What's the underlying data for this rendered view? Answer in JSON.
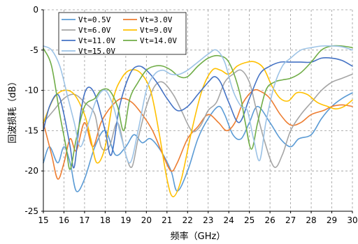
{
  "chart_data": {
    "type": "line",
    "title": "",
    "xlabel": "频率（GHz）",
    "ylabel": "回波损耗（dB）",
    "xlim": [
      15,
      30
    ],
    "ylim": [
      -25,
      0
    ],
    "x_ticks": [
      "15",
      "16",
      "17",
      "18",
      "19",
      "20",
      "21",
      "22",
      "23",
      "24",
      "25",
      "26",
      "27",
      "28",
      "29",
      "30"
    ],
    "y_ticks": [
      "0",
      "-5",
      "-10",
      "-15",
      "-20",
      "-25"
    ],
    "grid": true,
    "legend_position": "top-left",
    "series": [
      {
        "name": "Vt=0.5V",
        "color": "#5b9bd5",
        "points": [
          [
            15,
            -19
          ],
          [
            15.3,
            -17
          ],
          [
            15.7,
            -19
          ],
          [
            16,
            -17
          ],
          [
            16.3,
            -19
          ],
          [
            16.6,
            -22.5
          ],
          [
            17,
            -21
          ],
          [
            17.5,
            -17
          ],
          [
            18,
            -15
          ],
          [
            18.5,
            -18
          ],
          [
            19,
            -17
          ],
          [
            19.4,
            -15.5
          ],
          [
            19.8,
            -16.5
          ],
          [
            20.2,
            -16
          ],
          [
            20.7,
            -17.5
          ],
          [
            21.2,
            -20
          ],
          [
            21.5,
            -22.5
          ],
          [
            22,
            -20
          ],
          [
            22.5,
            -16
          ],
          [
            23,
            -13.5
          ],
          [
            23.5,
            -12
          ],
          [
            23.8,
            -13
          ],
          [
            24.2,
            -15.5
          ],
          [
            24.6,
            -16
          ],
          [
            25,
            -14
          ],
          [
            25.4,
            -12
          ],
          [
            26,
            -14
          ],
          [
            26.5,
            -16
          ],
          [
            27,
            -17
          ],
          [
            27.4,
            -16
          ],
          [
            28,
            -15.5
          ],
          [
            28.5,
            -13.5
          ],
          [
            29,
            -12
          ],
          [
            29.5,
            -11
          ],
          [
            30,
            -10.3
          ]
        ]
      },
      {
        "name": "Vt=3.0V",
        "color": "#ed7d31",
        "points": [
          [
            15,
            -14
          ],
          [
            15.4,
            -18
          ],
          [
            15.7,
            -21
          ],
          [
            16,
            -19
          ],
          [
            16.3,
            -16
          ],
          [
            16.6,
            -17.5
          ],
          [
            17,
            -14
          ],
          [
            17.4,
            -17
          ],
          [
            17.8,
            -14
          ],
          [
            18.3,
            -12
          ],
          [
            18.8,
            -11
          ],
          [
            19.3,
            -11.5
          ],
          [
            19.8,
            -13
          ],
          [
            20.3,
            -15
          ],
          [
            20.8,
            -18
          ],
          [
            21.2,
            -20
          ],
          [
            21.5,
            -19
          ],
          [
            22,
            -16
          ],
          [
            22.5,
            -14.5
          ],
          [
            23,
            -13
          ],
          [
            23.5,
            -14
          ],
          [
            23.9,
            -15
          ],
          [
            24.3,
            -14
          ],
          [
            24.7,
            -11.5
          ],
          [
            25.2,
            -10
          ],
          [
            25.6,
            -10.2
          ],
          [
            26,
            -11
          ],
          [
            26.5,
            -13
          ],
          [
            27,
            -14.3
          ],
          [
            27.5,
            -14
          ],
          [
            28,
            -13
          ],
          [
            28.6,
            -12.5
          ],
          [
            29,
            -12
          ],
          [
            29.5,
            -11.8
          ],
          [
            30,
            -12
          ]
        ]
      },
      {
        "name": "Vt=6.0V",
        "color": "#a5a5a5",
        "points": [
          [
            15,
            -14
          ],
          [
            15.5,
            -12.5
          ],
          [
            16,
            -11
          ],
          [
            16.5,
            -10.5
          ],
          [
            17,
            -11.5
          ],
          [
            17.5,
            -13
          ],
          [
            17.8,
            -17
          ],
          [
            18.2,
            -17
          ],
          [
            18.6,
            -14
          ],
          [
            19,
            -18
          ],
          [
            19.3,
            -19.5
          ],
          [
            19.6,
            -16
          ],
          [
            20,
            -12
          ],
          [
            20.4,
            -9.5
          ],
          [
            20.8,
            -9
          ],
          [
            21.3,
            -10.5
          ],
          [
            21.7,
            -12.5
          ],
          [
            22.2,
            -15
          ],
          [
            22.6,
            -14.5
          ],
          [
            23,
            -12.5
          ],
          [
            23.4,
            -11.5
          ],
          [
            23.8,
            -9
          ],
          [
            24.2,
            -8
          ],
          [
            24.6,
            -7.5
          ],
          [
            25,
            -9
          ],
          [
            25.3,
            -12
          ],
          [
            25.7,
            -16
          ],
          [
            26.2,
            -19.5
          ],
          [
            26.6,
            -18
          ],
          [
            27,
            -15
          ],
          [
            27.5,
            -13
          ],
          [
            28,
            -11.5
          ],
          [
            28.5,
            -10
          ],
          [
            29,
            -9
          ],
          [
            29.5,
            -8.5
          ],
          [
            30,
            -8
          ]
        ]
      },
      {
        "name": "Vt=9.0V",
        "color": "#ffc000",
        "points": [
          [
            15,
            -14
          ],
          [
            15.5,
            -11
          ],
          [
            16,
            -10
          ],
          [
            16.5,
            -10.5
          ],
          [
            17,
            -13
          ],
          [
            17.3,
            -16
          ],
          [
            17.6,
            -19
          ],
          [
            18,
            -17
          ],
          [
            18.4,
            -11
          ],
          [
            18.8,
            -8.5
          ],
          [
            19.2,
            -7.5
          ],
          [
            19.7,
            -7.8
          ],
          [
            20.2,
            -10
          ],
          [
            20.6,
            -15
          ],
          [
            21,
            -21
          ],
          [
            21.3,
            -23.2
          ],
          [
            21.7,
            -21
          ],
          [
            22.2,
            -15
          ],
          [
            22.7,
            -10
          ],
          [
            23.2,
            -7.5
          ],
          [
            23.6,
            -7.5
          ],
          [
            24,
            -8
          ],
          [
            24.4,
            -7
          ],
          [
            24.9,
            -6.5
          ],
          [
            25.3,
            -6.5
          ],
          [
            25.7,
            -7.3
          ],
          [
            26.1,
            -9.5
          ],
          [
            26.5,
            -11
          ],
          [
            26.9,
            -11.3
          ],
          [
            27.3,
            -10.3
          ],
          [
            27.8,
            -10.5
          ],
          [
            28.3,
            -11.5
          ],
          [
            28.8,
            -12
          ],
          [
            29.2,
            -12.3
          ],
          [
            29.6,
            -12
          ],
          [
            30,
            -11.2
          ]
        ]
      },
      {
        "name": "Vt=11.0V",
        "color": "#4472c4",
        "points": [
          [
            15,
            -15
          ],
          [
            15.3,
            -12
          ],
          [
            15.7,
            -10.5
          ],
          [
            16,
            -13
          ],
          [
            16.3,
            -17
          ],
          [
            16.5,
            -19.5
          ],
          [
            16.8,
            -13
          ],
          [
            17.1,
            -9.8
          ],
          [
            17.5,
            -10.5
          ],
          [
            18,
            -15
          ],
          [
            18.3,
            -18
          ],
          [
            18.7,
            -12
          ],
          [
            19.2,
            -8
          ],
          [
            19.6,
            -7
          ],
          [
            20,
            -7.5
          ],
          [
            20.5,
            -9
          ],
          [
            21,
            -11
          ],
          [
            21.5,
            -12.5
          ],
          [
            22,
            -12
          ],
          [
            22.5,
            -10.5
          ],
          [
            23,
            -9
          ],
          [
            23.3,
            -8.3
          ],
          [
            23.6,
            -9
          ],
          [
            24,
            -11.5
          ],
          [
            24.5,
            -14
          ],
          [
            25,
            -11
          ],
          [
            25.5,
            -8
          ],
          [
            26,
            -7
          ],
          [
            26.5,
            -6.5
          ],
          [
            27,
            -6.5
          ],
          [
            27.5,
            -6.5
          ],
          [
            28,
            -6.5
          ],
          [
            28.5,
            -6
          ],
          [
            29,
            -6
          ],
          [
            29.5,
            -6.3
          ],
          [
            30,
            -7
          ]
        ]
      },
      {
        "name": "Vt=14.0V",
        "color": "#70ad47",
        "points": [
          [
            15,
            -4.8
          ],
          [
            15.4,
            -7
          ],
          [
            15.8,
            -13
          ],
          [
            16.1,
            -17
          ],
          [
            16.3,
            -19.8
          ],
          [
            16.6,
            -16
          ],
          [
            17,
            -12
          ],
          [
            17.5,
            -11
          ],
          [
            17.8,
            -10
          ],
          [
            18.2,
            -10
          ],
          [
            18.6,
            -12
          ],
          [
            18.9,
            -15
          ],
          [
            19.2,
            -11
          ],
          [
            19.6,
            -9
          ],
          [
            20,
            -7.5
          ],
          [
            20.4,
            -7
          ],
          [
            20.8,
            -7
          ],
          [
            21.2,
            -7.5
          ],
          [
            21.6,
            -8.3
          ],
          [
            22,
            -8.3
          ],
          [
            22.5,
            -7
          ],
          [
            23,
            -6
          ],
          [
            23.5,
            -5.7
          ],
          [
            24,
            -6.5
          ],
          [
            24.5,
            -10
          ],
          [
            24.8,
            -14
          ],
          [
            25.1,
            -17.3
          ],
          [
            25.4,
            -14
          ],
          [
            25.8,
            -10
          ],
          [
            26.2,
            -9
          ],
          [
            26.6,
            -8.7
          ],
          [
            27,
            -8.5
          ],
          [
            27.5,
            -7.8
          ],
          [
            28,
            -6.5
          ],
          [
            28.5,
            -5
          ],
          [
            29,
            -4.5
          ],
          [
            29.5,
            -4.5
          ],
          [
            30,
            -4.7
          ]
        ]
      },
      {
        "name": "Vt=15.0V",
        "color": "#9dc3e6",
        "points": [
          [
            15,
            -4.5
          ],
          [
            15.4,
            -5
          ],
          [
            15.8,
            -7
          ],
          [
            16.2,
            -11
          ],
          [
            16.5,
            -14
          ],
          [
            16.8,
            -17
          ],
          [
            17.2,
            -14
          ],
          [
            17.6,
            -11
          ],
          [
            18,
            -10
          ],
          [
            18.4,
            -12
          ],
          [
            18.8,
            -16
          ],
          [
            19.2,
            -19
          ],
          [
            19.6,
            -15
          ],
          [
            20,
            -10
          ],
          [
            20.4,
            -8
          ],
          [
            20.8,
            -7.5
          ],
          [
            21.2,
            -8
          ],
          [
            21.6,
            -8
          ],
          [
            22,
            -7.5
          ],
          [
            22.5,
            -6.5
          ],
          [
            23,
            -5.5
          ],
          [
            23.4,
            -5
          ],
          [
            23.8,
            -6.5
          ],
          [
            24.2,
            -10
          ],
          [
            24.6,
            -12
          ],
          [
            24.9,
            -12.5
          ],
          [
            25.2,
            -16
          ],
          [
            25.5,
            -18.7
          ],
          [
            25.8,
            -14
          ],
          [
            26.2,
            -9.5
          ],
          [
            26.6,
            -7
          ],
          [
            27,
            -6
          ],
          [
            27.5,
            -5
          ],
          [
            28,
            -4.7
          ],
          [
            28.5,
            -4.5
          ],
          [
            29,
            -4.5
          ],
          [
            29.5,
            -4.6
          ],
          [
            30,
            -5
          ]
        ]
      }
    ]
  }
}
